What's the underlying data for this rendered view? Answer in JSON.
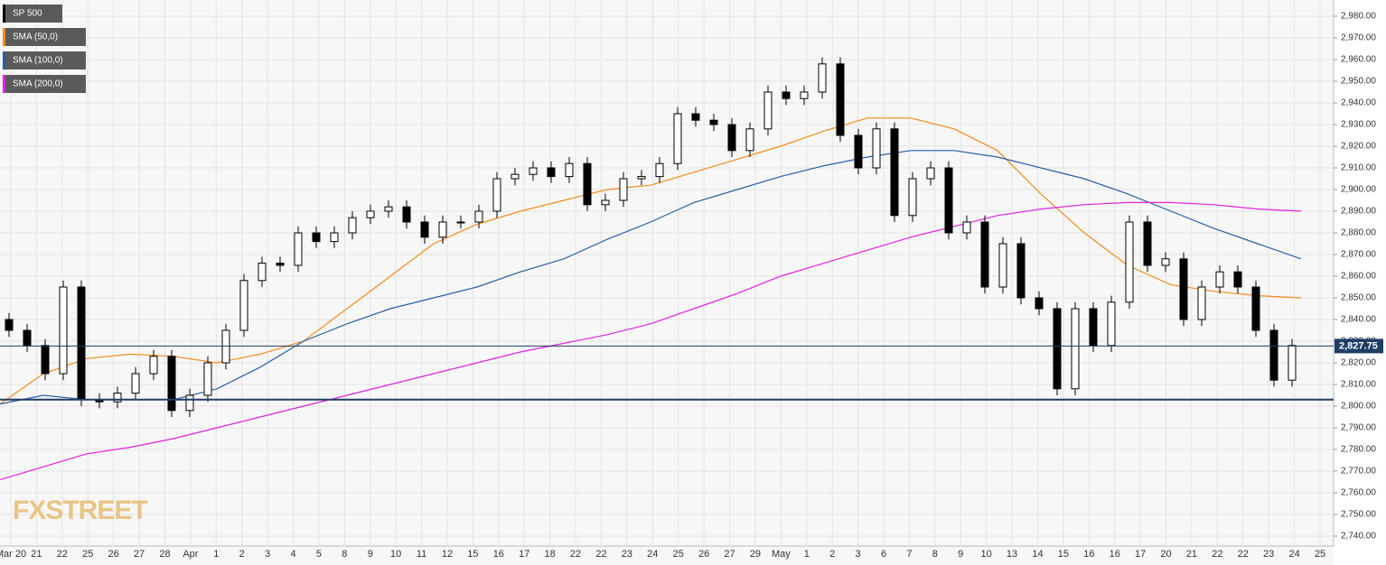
{
  "chart_data": {
    "type": "candlestick",
    "watermark": "FXSTREET",
    "ylim": [
      2735,
      2985
    ],
    "yticks": [
      {
        "value": 2740,
        "label": "2,740.00"
      },
      {
        "value": 2750,
        "label": "2,750.00"
      },
      {
        "value": 2760,
        "label": "2,760.00"
      },
      {
        "value": 2770,
        "label": "2,770.00"
      },
      {
        "value": 2780,
        "label": "2,780.00"
      },
      {
        "value": 2790,
        "label": "2,790.00"
      },
      {
        "value": 2800,
        "label": "2,800.00"
      },
      {
        "value": 2810,
        "label": "2,810.00"
      },
      {
        "value": 2820,
        "label": "2,820.00"
      },
      {
        "value": 2830,
        "label": "2,830.00"
      },
      {
        "value": 2840,
        "label": "2,840.00"
      },
      {
        "value": 2850,
        "label": "2,850.00"
      },
      {
        "value": 2860,
        "label": "2,860.00"
      },
      {
        "value": 2870,
        "label": "2,870.00"
      },
      {
        "value": 2880,
        "label": "2,880.00"
      },
      {
        "value": 2890,
        "label": "2,890.00"
      },
      {
        "value": 2900,
        "label": "2,900.00"
      },
      {
        "value": 2910,
        "label": "2,910.00"
      },
      {
        "value": 2920,
        "label": "2,920.00"
      },
      {
        "value": 2930,
        "label": "2,930.00"
      },
      {
        "value": 2940,
        "label": "2,940.00"
      },
      {
        "value": 2950,
        "label": "2,950.00"
      },
      {
        "value": 2960,
        "label": "2,960.00"
      },
      {
        "value": 2970,
        "label": "2,970.00"
      },
      {
        "value": 2980,
        "label": "2,980.00"
      }
    ],
    "grid": true,
    "xtick_labels": [
      "Mar 20",
      "21",
      "22",
      "25",
      "26",
      "27",
      "28",
      "Apr",
      "1",
      "2",
      "3",
      "4",
      "5",
      "8",
      "9",
      "10",
      "11",
      "12",
      "15",
      "16",
      "17",
      "18",
      "22",
      "22",
      "23",
      "24",
      "25",
      "26",
      "27",
      "29",
      "May",
      "1",
      "2",
      "3",
      "6",
      "7",
      "8",
      "9",
      "10",
      "13",
      "14",
      "15",
      "16",
      "16",
      "17",
      "20",
      "21",
      "22",
      "22",
      "23",
      "24",
      "25"
    ],
    "last_price": {
      "value": 2827.75,
      "label": "2,827.75"
    },
    "last_price_color": "#1f3d66",
    "support_level": 2803,
    "support_color": "#1f3d66",
    "candles": {
      "name": "SP 500",
      "color": "#000000",
      "open": [
        2840,
        2835,
        2828,
        2815,
        2855,
        2803,
        2802,
        2806,
        2815,
        2823,
        2798,
        2805,
        2820,
        2835,
        2858,
        2866,
        2865,
        2880,
        2876,
        2880,
        2887,
        2890,
        2892,
        2885,
        2878,
        2885,
        2885,
        2890,
        2905,
        2907,
        2910,
        2906,
        2912,
        2893,
        2895,
        2905,
        2906,
        2912,
        2935,
        2932,
        2930,
        2918,
        2928,
        2945,
        2942,
        2945,
        2958,
        2925,
        2910,
        2928,
        2888,
        2905,
        2910,
        2880,
        2885,
        2855,
        2875,
        2850,
        2845,
        2808,
        2845,
        2828,
        2848,
        2885,
        2865,
        2868,
        2840,
        2855,
        2862,
        2855,
        2835,
        2812
      ],
      "high": [
        2843,
        2838,
        2831,
        2858,
        2858,
        2806,
        2809,
        2818,
        2826,
        2826,
        2808,
        2823,
        2838,
        2861,
        2869,
        2869,
        2883,
        2883,
        2883,
        2890,
        2893,
        2895,
        2895,
        2888,
        2888,
        2888,
        2893,
        2908,
        2910,
        2913,
        2913,
        2915,
        2915,
        2898,
        2908,
        2909,
        2915,
        2938,
        2938,
        2935,
        2933,
        2931,
        2948,
        2948,
        2948,
        2961,
        2961,
        2928,
        2931,
        2931,
        2908,
        2913,
        2913,
        2888,
        2888,
        2878,
        2878,
        2853,
        2848,
        2848,
        2848,
        2851,
        2888,
        2888,
        2871,
        2871,
        2858,
        2865,
        2865,
        2858,
        2838,
        2831
      ],
      "low": [
        2832,
        2825,
        2812,
        2812,
        2800,
        2799,
        2799,
        2803,
        2812,
        2795,
        2795,
        2802,
        2817,
        2832,
        2855,
        2862,
        2862,
        2873,
        2873,
        2877,
        2884,
        2887,
        2882,
        2875,
        2875,
        2882,
        2882,
        2887,
        2902,
        2904,
        2903,
        2903,
        2890,
        2890,
        2892,
        2902,
        2903,
        2909,
        2929,
        2927,
        2915,
        2915,
        2925,
        2939,
        2939,
        2942,
        2922,
        2907,
        2907,
        2885,
        2885,
        2902,
        2877,
        2877,
        2852,
        2852,
        2847,
        2842,
        2805,
        2805,
        2825,
        2825,
        2845,
        2862,
        2862,
        2837,
        2837,
        2852,
        2852,
        2832,
        2809,
        2809
      ],
      "close": [
        2835,
        2828,
        2815,
        2855,
        2803,
        2802,
        2806,
        2815,
        2823,
        2798,
        2805,
        2820,
        2835,
        2858,
        2866,
        2865,
        2880,
        2876,
        2880,
        2887,
        2890,
        2892,
        2885,
        2878,
        2885,
        2885,
        2890,
        2905,
        2907,
        2910,
        2906,
        2912,
        2893,
        2895,
        2905,
        2906,
        2912,
        2935,
        2932,
        2930,
        2918,
        2928,
        2945,
        2942,
        2945,
        2958,
        2925,
        2910,
        2928,
        2888,
        2905,
        2910,
        2880,
        2885,
        2855,
        2875,
        2850,
        2845,
        2808,
        2845,
        2828,
        2848,
        2885,
        2865,
        2868,
        2840,
        2855,
        2862,
        2855,
        2835,
        2812,
        2828
      ]
    },
    "series": [
      {
        "name": "SMA (50,0)",
        "color": "#f28c1a",
        "values": [
          2801,
          2815,
          2822,
          2824,
          2823,
          2820,
          2824,
          2830,
          2845,
          2860,
          2875,
          2884,
          2890,
          2895,
          2900,
          2902,
          2908,
          2914,
          2920,
          2927,
          2933,
          2933,
          2928,
          2918,
          2898,
          2880,
          2865,
          2856,
          2853,
          2851,
          2850
        ]
      },
      {
        "name": "SMA (100,0)",
        "color": "#2a5ea8",
        "values": [
          2801,
          2805,
          2803,
          2803,
          2803,
          2808,
          2818,
          2830,
          2838,
          2845,
          2850,
          2855,
          2862,
          2868,
          2877,
          2885,
          2894,
          2900,
          2906,
          2911,
          2915,
          2918,
          2918,
          2915,
          2910,
          2905,
          2898,
          2890,
          2882,
          2875,
          2868
        ]
      },
      {
        "name": "SMA (200,0)",
        "color": "#e020e0",
        "values": [
          2766,
          2772,
          2778,
          2781,
          2785,
          2790,
          2795,
          2800,
          2805,
          2810,
          2815,
          2820,
          2825,
          2829,
          2833,
          2838,
          2845,
          2852,
          2860,
          2866,
          2872,
          2878,
          2883,
          2888,
          2891,
          2893,
          2894,
          2894,
          2893,
          2891,
          2890
        ]
      }
    ]
  }
}
